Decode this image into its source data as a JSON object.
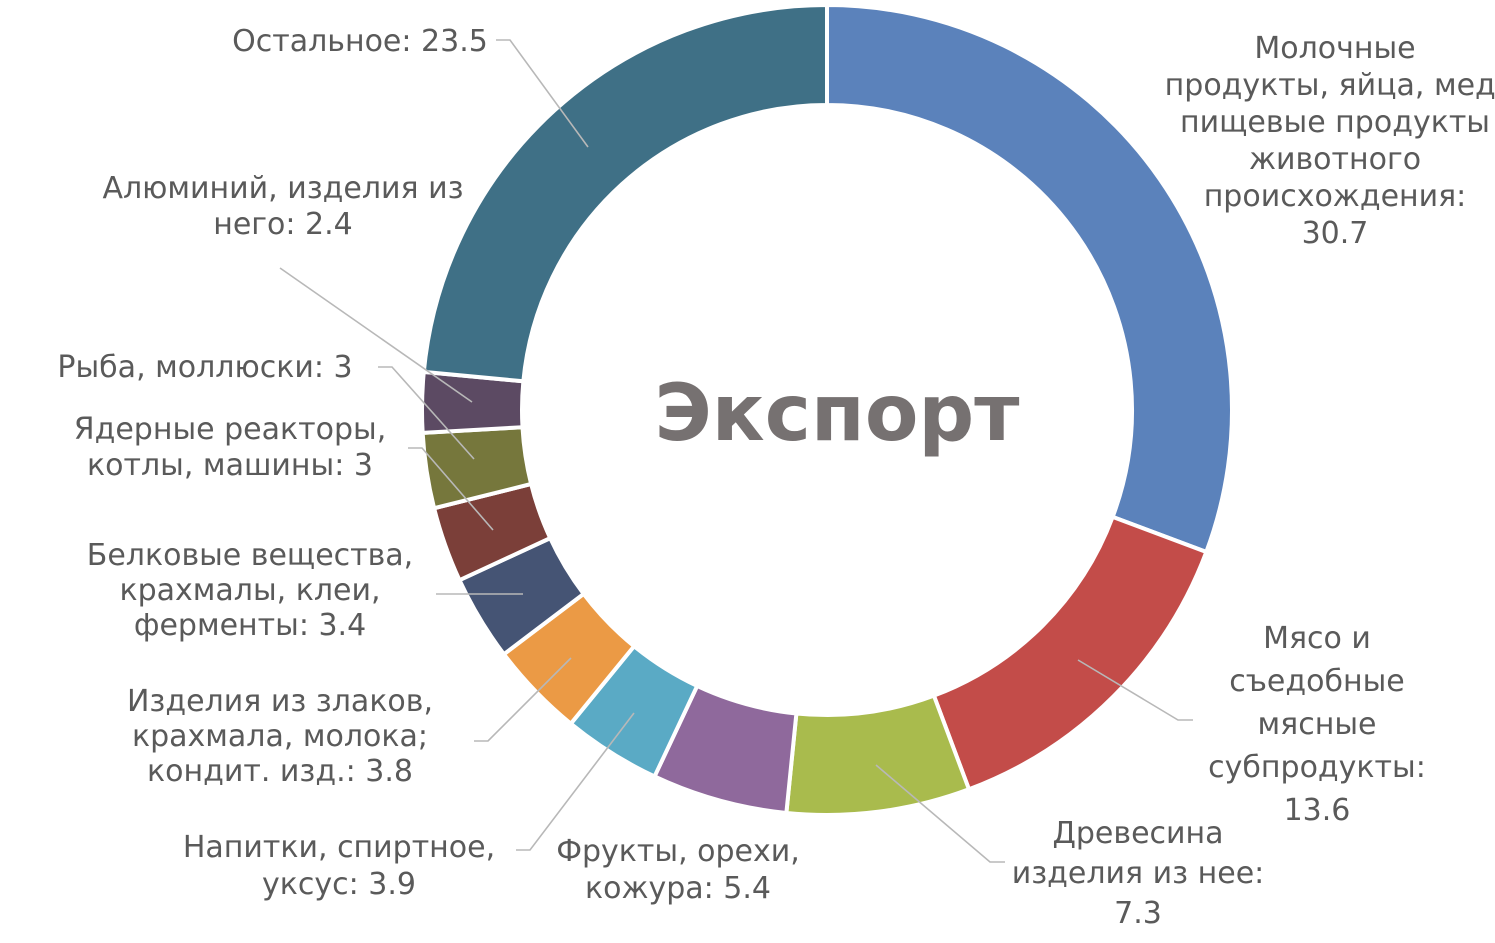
{
  "chart_data": {
    "type": "pie",
    "title": "Экспорт",
    "slices": [
      {
        "name": "Молочные продукты, яйца, мед, пищевые продукты животного происхождения",
        "value": 30.7,
        "color": "#5b82bb",
        "label": [
          "Молочные",
          "продукты, яйца, мед,",
          "пищевые продукты",
          "животного",
          "происхождения:",
          "30.7"
        ]
      },
      {
        "name": "Мясо и съедобные мясные субпродукты",
        "value": 13.6,
        "color": "#c34c49",
        "label": [
          "Мясо и",
          "съедобные",
          "мясные",
          "субпродукты:",
          "13.6"
        ]
      },
      {
        "name": "Древесина изделия из нее",
        "value": 7.3,
        "color": "#a9bb4d",
        "label": [
          "Древесина",
          "изделия из нее:",
          "7.3"
        ]
      },
      {
        "name": "Фрукты, орехи, кожура",
        "value": 5.4,
        "color": "#8f699c",
        "label": [
          "Фрукты, орехи,",
          "кожура: 5.4"
        ]
      },
      {
        "name": "Напитки, спиртное, уксус",
        "value": 3.9,
        "color": "#5aaac5",
        "label": [
          "Напитки, спиртное,",
          "уксус: 3.9"
        ]
      },
      {
        "name": "Изделия из злаков, крахмала, молока; кондит. изд.",
        "value": 3.8,
        "color": "#eb9a45",
        "label": [
          "Изделия из злаков,",
          "крахмала, молока;",
          "кондит. изд.: 3.8"
        ]
      },
      {
        "name": "Белковые вещества, крахмалы, клеи, ферменты",
        "value": 3.4,
        "color": "#455474",
        "label": [
          "Белковые вещества,",
          "крахмалы, клеи,",
          "ферменты: 3.4"
        ]
      },
      {
        "name": "Ядерные реакторы, котлы, машины",
        "value": 3,
        "color": "#7b3f39",
        "label": [
          "Ядерные реакторы,",
          "котлы, машины: 3"
        ]
      },
      {
        "name": "Рыба, моллюски",
        "value": 3,
        "color": "#76773c",
        "label": [
          "Рыба, моллюски: 3"
        ]
      },
      {
        "name": "Алюминий, изделия из него",
        "value": 2.4,
        "color": "#5c4a63",
        "label": [
          "Алюминий, изделия из",
          "него: 2.4"
        ]
      },
      {
        "name": "Остальное",
        "value": 23.5,
        "color": "#3f7086",
        "label": [
          "Остальное: 23.5"
        ]
      }
    ]
  }
}
